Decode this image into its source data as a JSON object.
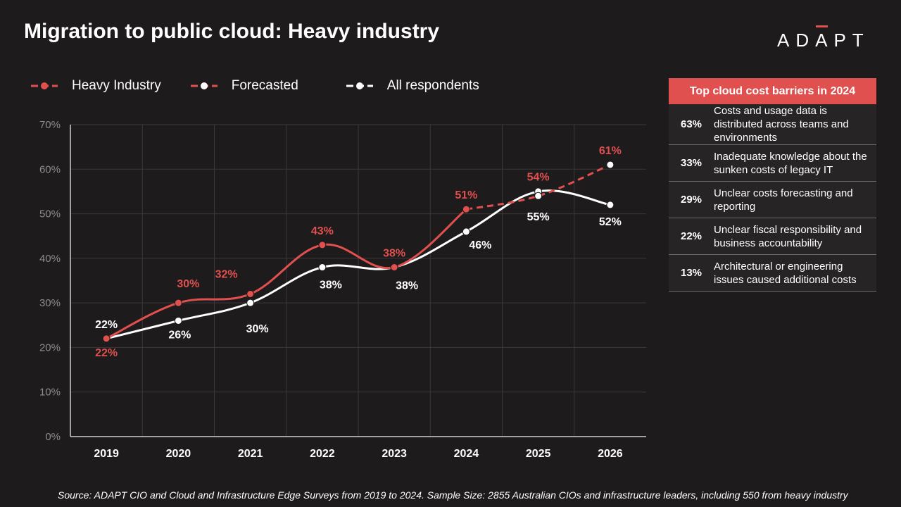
{
  "title": "Migration to public cloud: Heavy industry",
  "logo": "ADAPT",
  "colors": {
    "accent": "#e0504f",
    "white": "#ffffff",
    "background": "#1e1b1c",
    "grid": "#3a3838"
  },
  "legend": [
    "Heavy Industry",
    "Forecasted",
    "All respondents"
  ],
  "chart_data": {
    "type": "line",
    "x": [
      "2019",
      "2020",
      "2021",
      "2022",
      "2023",
      "2024",
      "2025",
      "2026"
    ],
    "ylim": [
      0,
      70
    ],
    "yticks": [
      "0%",
      "10%",
      "20%",
      "30%",
      "40%",
      "50%",
      "60%",
      "70%"
    ],
    "grid": true,
    "legend_position": "top-left",
    "series": [
      {
        "name": "Heavy Industry",
        "color": "#e0504f",
        "style": "solid",
        "values": [
          22,
          30,
          32,
          43,
          38,
          51,
          null,
          null
        ],
        "labels": [
          "22%",
          "30%",
          "32%",
          "43%",
          "38%",
          "51%",
          "",
          ""
        ]
      },
      {
        "name": "Forecasted",
        "color": "#e0504f",
        "style": "dashed",
        "values": [
          null,
          null,
          null,
          null,
          null,
          51,
          54,
          61
        ],
        "labels": [
          "",
          "",
          "",
          "",
          "",
          "",
          "54%",
          "61%"
        ]
      },
      {
        "name": "All respondents",
        "color": "#ffffff",
        "style": "solid",
        "values": [
          22,
          26,
          30,
          38,
          38,
          46,
          55,
          52
        ],
        "labels": [
          "22%",
          "26%",
          "30%",
          "38%",
          "38%",
          "46%",
          "55%",
          "52%"
        ]
      }
    ]
  },
  "barriers": {
    "title": "Top cloud cost barriers in 2024",
    "items": [
      {
        "pct": "63%",
        "text": "Costs and usage data is distributed across teams and environments"
      },
      {
        "pct": "33%",
        "text": "Inadequate knowledge about the sunken costs of legacy IT"
      },
      {
        "pct": "29%",
        "text": "Unclear costs forecasting and reporting"
      },
      {
        "pct": "22%",
        "text": "Unclear fiscal responsibility and business accountability"
      },
      {
        "pct": "13%",
        "text": "Architectural or engineering issues caused additional costs"
      }
    ]
  },
  "source": "Source: ADAPT CIO and Cloud and Infrastructure Edge Surveys from 2019 to 2024. Sample Size: 2855 Australian CIOs and infrastructure leaders, including 550 from heavy industry"
}
